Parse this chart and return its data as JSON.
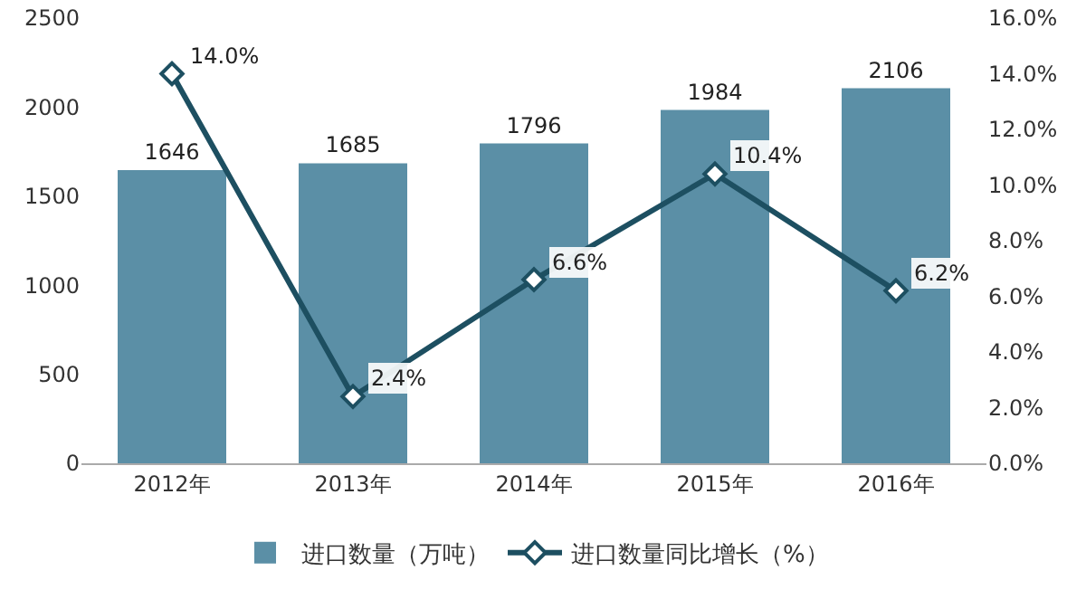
{
  "chart_data": {
    "type": "bar",
    "categories": [
      "2012年",
      "2013年",
      "2014年",
      "2015年",
      "2016年"
    ],
    "series": [
      {
        "name": "进口数量（万吨）",
        "color": "#5b8fa6",
        "values": [
          1646,
          1685,
          1796,
          1984,
          2106
        ],
        "value_labels": [
          "1646",
          "1685",
          "1796",
          "1984",
          "2106"
        ]
      },
      {
        "name": "进口数量同比增长（%）",
        "type": "line",
        "axis": "y2",
        "color": "#1d4f61",
        "marker": "diamond",
        "values": [
          14.0,
          2.4,
          6.6,
          10.4,
          6.2
        ],
        "value_labels": [
          "14.0%",
          "2.4%",
          "6.6%",
          "10.4%",
          "6.2%"
        ]
      }
    ],
    "ylim": [
      0,
      2500
    ],
    "yticks": [
      0,
      500,
      1000,
      1500,
      2000,
      2500
    ],
    "y2lim": [
      0,
      16
    ],
    "y2ticks": [
      {
        "value": 0,
        "label": "0.0%"
      },
      {
        "value": 2,
        "label": "2.0%"
      },
      {
        "value": 4,
        "label": "4.0%"
      },
      {
        "value": 6,
        "label": "6.0%"
      },
      {
        "value": 8,
        "label": "8.0%"
      },
      {
        "value": 10,
        "label": "10.0%"
      },
      {
        "value": 12,
        "label": "12.0%"
      },
      {
        "value": 14,
        "label": "14.0%"
      },
      {
        "value": 16,
        "label": "16.0%"
      }
    ],
    "grid": false,
    "legend": "bottom"
  }
}
